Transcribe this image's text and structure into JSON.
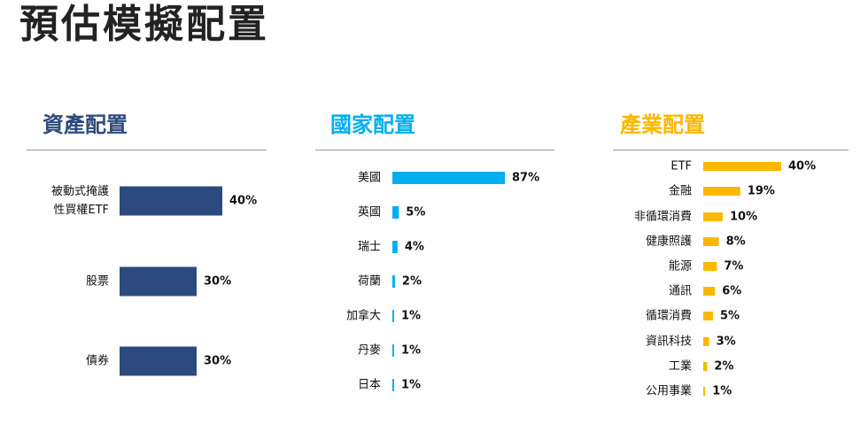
{
  "page": {
    "title": "預估模擬配置"
  },
  "panels": {
    "asset": {
      "title": "資產配置",
      "color": "#2c4a7e"
    },
    "country": {
      "title": "國家配置",
      "color": "#00aeef"
    },
    "industry": {
      "title": "產業配置",
      "color": "#fbb800"
    }
  },
  "chart_data": [
    {
      "type": "bar",
      "orientation": "horizontal",
      "title": "資產配置",
      "categories": [
        [
          "被動式掩護",
          "性買權ETF"
        ],
        [
          "股票"
        ],
        [
          "債券"
        ]
      ],
      "values": [
        40,
        30,
        30
      ],
      "labels": [
        "40%",
        "30%",
        "30%"
      ],
      "unit": "%"
    },
    {
      "type": "bar",
      "orientation": "horizontal",
      "title": "國家配置",
      "categories": [
        "美國",
        "英國",
        "瑞士",
        "荷蘭",
        "加拿大",
        "丹麥",
        "日本"
      ],
      "values": [
        87,
        5,
        4,
        2,
        1,
        1,
        1
      ],
      "labels": [
        "87%",
        "5%",
        "4%",
        "2%",
        "1%",
        "1%",
        "1%"
      ],
      "unit": "%"
    },
    {
      "type": "bar",
      "orientation": "horizontal",
      "title": "產業配置",
      "categories": [
        "ETF",
        "金融",
        "非循環消費",
        "健康照護",
        "能源",
        "通訊",
        "循環消費",
        "資訊科技",
        "工業",
        "公用事業"
      ],
      "values": [
        40,
        19,
        10,
        8,
        7,
        6,
        5,
        3,
        2,
        1
      ],
      "labels": [
        "40%",
        "19%",
        "10%",
        "8%",
        "7%",
        "6%",
        "5%",
        "3%",
        "2%",
        "1%"
      ],
      "unit": "%"
    }
  ]
}
